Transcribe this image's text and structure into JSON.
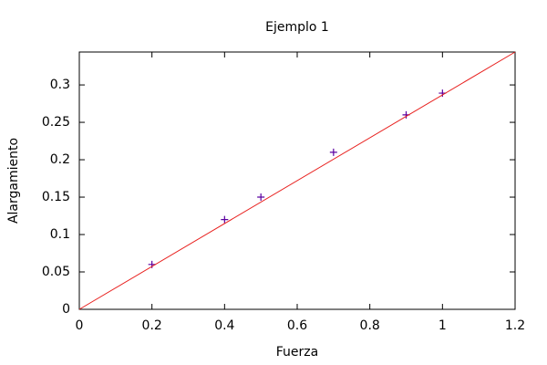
{
  "chart_data": {
    "type": "scatter",
    "title": "Ejemplo 1",
    "x_label": "Fuerza",
    "y_label": "Alargamiento",
    "xlim": [
      0,
      1.2
    ],
    "ylim": [
      0,
      0.344
    ],
    "xticks": [
      0,
      0.2,
      0.4,
      0.6,
      0.8,
      1,
      1.2
    ],
    "yticks": [
      0,
      0.05,
      0.1,
      0.15,
      0.2,
      0.25,
      0.3
    ],
    "series": [
      {
        "style": "points",
        "color": "#5a00a0",
        "x": [
          0.2,
          0.4,
          0.5,
          0.7,
          0.9,
          1.0
        ],
        "values": [
          0.06,
          0.12,
          0.15,
          0.21,
          0.26,
          0.289
        ]
      },
      {
        "style": "line",
        "color": "#e8201e",
        "x": [
          0,
          1.2
        ],
        "values": [
          0,
          0.344
        ]
      }
    ]
  }
}
